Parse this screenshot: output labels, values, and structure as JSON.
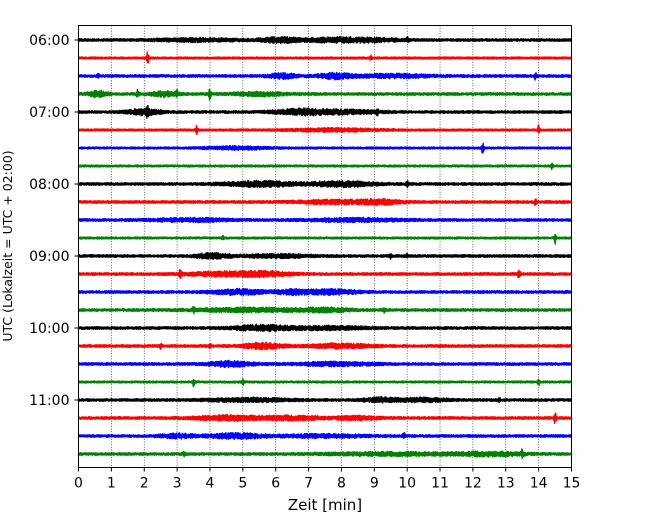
{
  "chart_data": {
    "type": "helicorder",
    "xlabel": "Zeit  [min]",
    "ylabel": "UTC (Lokalzeit = UTC + 02:00)",
    "xlim": [
      0,
      15
    ],
    "x_ticks": [
      0,
      1,
      2,
      3,
      4,
      5,
      6,
      7,
      8,
      9,
      10,
      11,
      12,
      13,
      14,
      15
    ],
    "x_tick_labels": [
      "0",
      "1",
      "2",
      "3",
      "4",
      "5",
      "6",
      "7",
      "8",
      "9",
      "10",
      "11",
      "12",
      "13",
      "14",
      "15"
    ],
    "y_tick_labels": [
      "06:00",
      "07:00",
      "08:00",
      "09:00",
      "10:00",
      "11:00"
    ],
    "lines_per_hour": 4,
    "minutes_per_line": 15,
    "trace_colors": [
      "#000000",
      "#ff0000",
      "#0000ff",
      "#008000"
    ],
    "vertical_grid": "dotted, every 1 min",
    "traces": [
      {
        "start": "06:00",
        "color": "#000000",
        "base": 1.3,
        "bursts": [
          [
            3.6,
            1.2,
            1.3
          ],
          [
            6.1,
            0.6,
            2.2
          ],
          [
            7.8,
            0.9,
            2.0
          ],
          [
            9.0,
            0.8,
            1.3
          ]
        ],
        "spikes": [
          [
            10.0,
            2.0
          ]
        ]
      },
      {
        "start": "06:15",
        "color": "#ff0000",
        "base": 1.0,
        "bursts": [],
        "spikes": [
          [
            2.1,
            6.0
          ],
          [
            8.9,
            2.0
          ]
        ]
      },
      {
        "start": "06:30",
        "color": "#0000ff",
        "base": 1.3,
        "bursts": [
          [
            6.2,
            0.4,
            2.3
          ],
          [
            7.8,
            0.5,
            2.4
          ],
          [
            9.6,
            1.2,
            1.5
          ]
        ],
        "spikes": [
          [
            0.6,
            2.5
          ],
          [
            13.9,
            3.5
          ]
        ]
      },
      {
        "start": "06:45",
        "color": "#008000",
        "base": 1.3,
        "bursts": [
          [
            0.6,
            0.3,
            2.6
          ],
          [
            2.6,
            0.4,
            2.2
          ],
          [
            5.5,
            0.8,
            1.6
          ]
        ],
        "spikes": [
          [
            1.8,
            5.0
          ],
          [
            3.0,
            3.0
          ],
          [
            4.0,
            5.5
          ]
        ]
      },
      {
        "start": "07:00",
        "color": "#000000",
        "base": 1.3,
        "bursts": [
          [
            2.0,
            0.5,
            2.5
          ],
          [
            6.8,
            0.8,
            2.5
          ],
          [
            8.2,
            1.0,
            1.6
          ]
        ],
        "spikes": [
          [
            2.1,
            4.0
          ],
          [
            9.1,
            2.0
          ]
        ]
      },
      {
        "start": "07:15",
        "color": "#ff0000",
        "base": 1.0,
        "bursts": [
          [
            7.8,
            1.4,
            1.4
          ]
        ],
        "spikes": [
          [
            3.6,
            4.0
          ],
          [
            14.0,
            4.5
          ]
        ]
      },
      {
        "start": "07:30",
        "color": "#0000ff",
        "base": 1.0,
        "bursts": [
          [
            4.8,
            1.0,
            1.3
          ]
        ],
        "spikes": [
          [
            12.3,
            5.5
          ]
        ]
      },
      {
        "start": "07:45",
        "color": "#008000",
        "base": 1.0,
        "bursts": [],
        "spikes": [
          [
            14.4,
            3.0
          ]
        ]
      },
      {
        "start": "08:00",
        "color": "#000000",
        "base": 1.3,
        "bursts": [
          [
            5.5,
            1.0,
            2.5
          ],
          [
            8.0,
            1.0,
            2.3
          ]
        ],
        "spikes": [
          [
            10.0,
            3.5
          ]
        ]
      },
      {
        "start": "08:15",
        "color": "#ff0000",
        "base": 1.3,
        "bursts": [
          [
            7.8,
            1.2,
            1.6
          ],
          [
            9.2,
            0.6,
            1.9
          ]
        ],
        "spikes": [
          [
            13.9,
            2.5
          ]
        ]
      },
      {
        "start": "08:30",
        "color": "#0000ff",
        "base": 1.3,
        "bursts": [
          [
            3.4,
            1.2,
            1.4
          ],
          [
            8.4,
            1.5,
            1.3
          ]
        ],
        "spikes": []
      },
      {
        "start": "08:45",
        "color": "#008000",
        "base": 1.0,
        "bursts": [],
        "spikes": [
          [
            4.4,
            2.0
          ],
          [
            14.5,
            5.5
          ]
        ]
      },
      {
        "start": "09:00",
        "color": "#000000",
        "base": 1.3,
        "bursts": [
          [
            4.1,
            0.5,
            2.3
          ],
          [
            6.0,
            1.0,
            1.5
          ]
        ],
        "spikes": [
          [
            9.5,
            2.5
          ],
          [
            10.0,
            1.6
          ]
        ]
      },
      {
        "start": "09:15",
        "color": "#ff0000",
        "base": 1.3,
        "bursts": [
          [
            4.3,
            1.0,
            1.8
          ],
          [
            5.7,
            0.8,
            2.0
          ]
        ],
        "spikes": [
          [
            3.1,
            4.0
          ],
          [
            13.4,
            5.0
          ]
        ]
      },
      {
        "start": "09:30",
        "color": "#0000ff",
        "base": 1.3,
        "bursts": [
          [
            4.9,
            0.8,
            2.3
          ],
          [
            6.5,
            0.5,
            1.9
          ],
          [
            7.7,
            0.8,
            2.2
          ]
        ],
        "spikes": []
      },
      {
        "start": "09:45",
        "color": "#008000",
        "base": 1.3,
        "bursts": [
          [
            5.2,
            1.6,
            1.7
          ],
          [
            7.5,
            0.8,
            1.6
          ]
        ],
        "spikes": [
          [
            3.5,
            2.5
          ],
          [
            9.3,
            2.2
          ]
        ]
      },
      {
        "start": "10:00",
        "color": "#000000",
        "base": 1.3,
        "bursts": [
          [
            5.5,
            0.8,
            2.4
          ],
          [
            7.5,
            1.3,
            1.5
          ]
        ],
        "spikes": []
      },
      {
        "start": "10:15",
        "color": "#ff0000",
        "base": 1.3,
        "bursts": [
          [
            5.6,
            0.6,
            2.6
          ],
          [
            8.0,
            0.9,
            2.0
          ]
        ],
        "spikes": [
          [
            2.5,
            2.2
          ],
          [
            4.0,
            2.0
          ]
        ]
      },
      {
        "start": "10:30",
        "color": "#0000ff",
        "base": 1.3,
        "bursts": [
          [
            4.6,
            0.7,
            2.3
          ],
          [
            7.8,
            1.2,
            1.5
          ]
        ],
        "spikes": []
      },
      {
        "start": "10:45",
        "color": "#008000",
        "base": 1.0,
        "bursts": [],
        "spikes": [
          [
            3.5,
            4.0
          ],
          [
            5.0,
            2.5
          ],
          [
            14.0,
            3.5
          ]
        ]
      },
      {
        "start": "11:00",
        "color": "#000000",
        "base": 1.3,
        "bursts": [
          [
            5.2,
            1.2,
            1.5
          ],
          [
            9.2,
            0.5,
            2.0
          ],
          [
            10.5,
            0.7,
            1.6
          ]
        ],
        "spikes": [
          [
            12.8,
            2.0
          ]
        ]
      },
      {
        "start": "11:15",
        "color": "#ff0000",
        "base": 1.3,
        "bursts": [
          [
            4.5,
            1.0,
            2.0
          ],
          [
            6.5,
            1.0,
            1.8
          ],
          [
            8.5,
            0.6,
            1.6
          ]
        ],
        "spikes": [
          [
            14.5,
            5.0
          ]
        ]
      },
      {
        "start": "11:30",
        "color": "#0000ff",
        "base": 1.3,
        "bursts": [
          [
            3.0,
            0.5,
            1.8
          ],
          [
            4.8,
            0.9,
            2.1
          ],
          [
            7.5,
            1.2,
            1.4
          ]
        ],
        "spikes": [
          [
            9.9,
            2.5
          ]
        ]
      },
      {
        "start": "11:45",
        "color": "#008000",
        "base": 1.3,
        "bursts": [
          [
            9.5,
            2.0,
            1.3
          ],
          [
            12.5,
            1.0,
            1.7
          ]
        ],
        "spikes": [
          [
            13.5,
            3.5
          ],
          [
            3.2,
            2.0
          ]
        ]
      }
    ]
  }
}
